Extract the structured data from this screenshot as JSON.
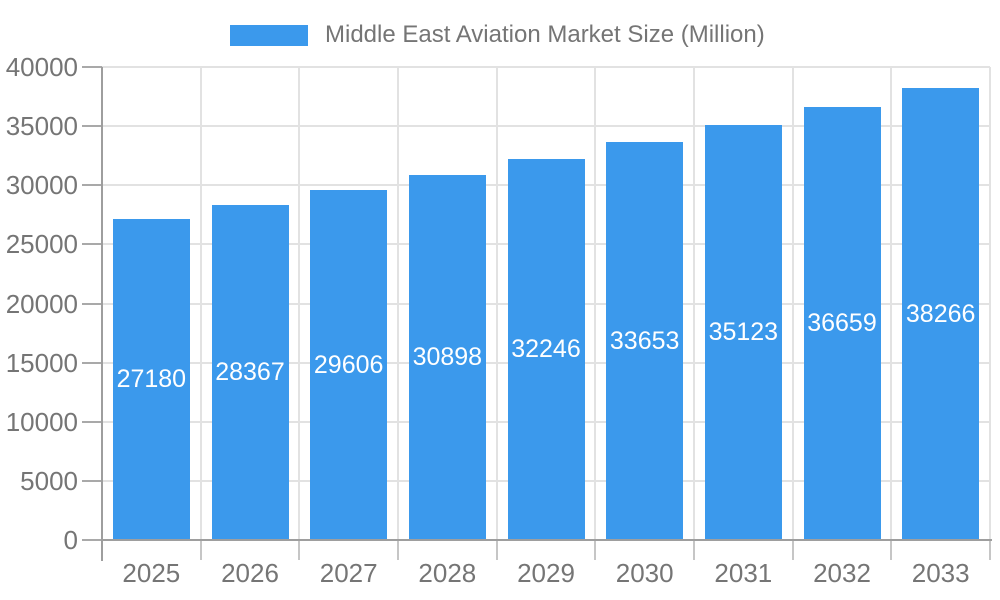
{
  "legend": {
    "label": "Middle East Aviation Market Size (Million)"
  },
  "colors": {
    "background": "#FFFFFF",
    "bar": "#3B99EC",
    "grid": "#E2E2E2",
    "axis": "#9E9E9E",
    "x_tick": "#C6C6C6",
    "y_tick": "#A9A9A9",
    "label_text": "#757575",
    "value_text": "#FFFFFF"
  },
  "chart_data": {
    "type": "bar",
    "title": "",
    "legend_entries": [
      "Middle East Aviation Market Size (Million)"
    ],
    "legend_position": "top-center",
    "categories": [
      "2025",
      "2026",
      "2027",
      "2028",
      "2029",
      "2030",
      "2031",
      "2032",
      "2033"
    ],
    "series": [
      {
        "name": "Middle East Aviation Market Size (Million)",
        "values": [
          27180,
          28367,
          29606,
          30898,
          32246,
          33653,
          35123,
          36659,
          38266
        ],
        "color": "#3B99EC"
      }
    ],
    "value_labels": {
      "position": "inside-center",
      "color": "#FFFFFF"
    },
    "xlabel": "",
    "ylabel": "",
    "ylim": [
      0,
      40000
    ],
    "ytick_step": 5000,
    "ytick_labels": [
      "0",
      "5000",
      "10000",
      "15000",
      "20000",
      "25000",
      "30000",
      "35000",
      "40000"
    ],
    "grid": true
  }
}
